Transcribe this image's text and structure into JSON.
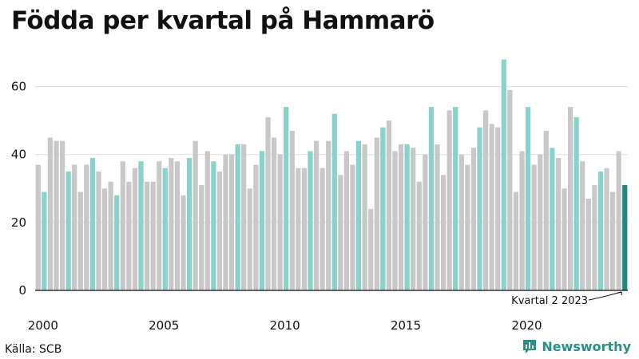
{
  "title": "Födda per kvartal på Hammarö",
  "source": "Källa: SCB",
  "brand": {
    "name": "Newsworthy",
    "logo_icon": "bar-chart-logo-icon"
  },
  "colors": {
    "bar": "#c8c8c8",
    "q2_bar": "#87d3cb",
    "latest_bar": "#1b8a7e",
    "grid": "#dddddd",
    "axis": "#111111",
    "brand": "#2a8f84"
  },
  "chart_data": {
    "type": "bar",
    "title": "Födda per kvartal på Hammarö",
    "start": {
      "year": 2000,
      "quarter": 1
    },
    "x_tick_labels": [
      "2000",
      "2005",
      "2010",
      "2015",
      "2020"
    ],
    "y_ticks": [
      0,
      20,
      40,
      60
    ],
    "ylim": [
      0,
      70
    ],
    "grid": true,
    "highlight": "quarter 2 bars in teal; latest bar in dark teal",
    "annotation": "Kvartal 2 2023",
    "values": [
      37,
      29,
      45,
      44,
      44,
      35,
      37,
      29,
      37,
      39,
      35,
      30,
      32,
      28,
      38,
      32,
      36,
      38,
      32,
      32,
      38,
      36,
      39,
      38,
      28,
      39,
      44,
      31,
      41,
      38,
      35,
      40,
      40,
      43,
      43,
      30,
      37,
      41,
      51,
      45,
      40,
      54,
      47,
      36,
      36,
      41,
      44,
      36,
      44,
      52,
      34,
      41,
      37,
      44,
      43,
      24,
      45,
      48,
      50,
      41,
      43,
      43,
      42,
      32,
      40,
      54,
      43,
      34,
      53,
      54,
      40,
      37,
      42,
      48,
      53,
      49,
      48,
      68,
      59,
      29,
      41,
      54,
      37,
      40,
      47,
      42,
      39,
      30,
      54,
      51,
      38,
      27,
      31,
      35,
      36,
      29,
      41,
      31
    ]
  }
}
